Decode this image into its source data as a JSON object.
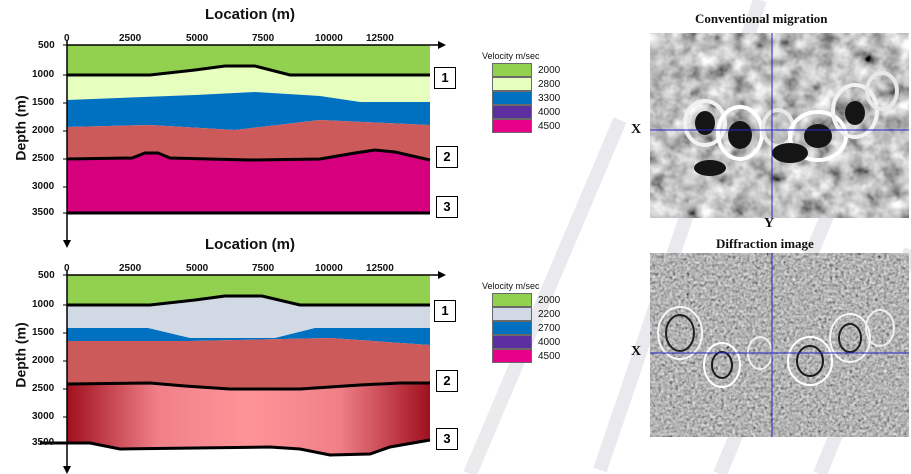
{
  "top_panel": {
    "title": "Location (m)",
    "ylabel": "Depth (m)",
    "x_ticks": [
      "0",
      "2500",
      "5000",
      "7500",
      "10000",
      "12500"
    ],
    "y_ticks": [
      "500",
      "1000",
      "1500",
      "2000",
      "2500",
      "3000",
      "3500"
    ],
    "layer_numbers": [
      "1",
      "2",
      "3"
    ],
    "legend": {
      "title": "Velocity m/sec",
      "items": [
        {
          "label": "2000",
          "color": "#92d050"
        },
        {
          "label": "2800",
          "color": "#e6ffbe"
        },
        {
          "label": "3300",
          "color": "#0070c0"
        },
        {
          "label": "4000",
          "color": "#5b2fa0"
        },
        {
          "label": "4500",
          "color": "#e8008a"
        }
      ]
    }
  },
  "bottom_panel": {
    "title": "Location (m)",
    "ylabel": "Depth (m)",
    "x_ticks": [
      "0",
      "2500",
      "5000",
      "7500",
      "10000",
      "12500"
    ],
    "y_ticks": [
      "500",
      "1000",
      "1500",
      "2000",
      "2500",
      "3000",
      "3500"
    ],
    "layer_numbers": [
      "1",
      "2",
      "3"
    ],
    "legend": {
      "title": "Velocity m/sec",
      "items": [
        {
          "label": "2000",
          "color": "#92d050"
        },
        {
          "label": "2200",
          "color": "#d0d9e4"
        },
        {
          "label": "2700",
          "color": "#0070c0"
        },
        {
          "label": "4000",
          "color": "#5b2fa0"
        },
        {
          "label": "4500",
          "color": "#e8008a"
        }
      ]
    }
  },
  "images": {
    "top_title": "Conventional migration",
    "bottom_title": "Diffraction image",
    "x_label": "X",
    "y_label": "Y"
  },
  "colors": {
    "layer1": "#92d050",
    "layer2_top": "#e6ffbe",
    "layer2_bottom": "#d0d9e4",
    "blue": "#0070c0",
    "layer3": "#cc5a5a",
    "layer4_top": "#d6007e",
    "crosshair": "#2626c8"
  }
}
